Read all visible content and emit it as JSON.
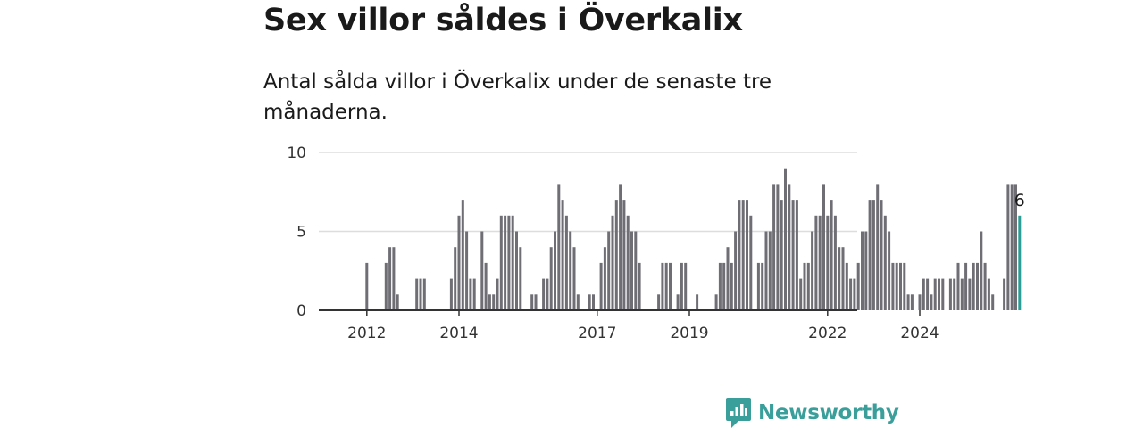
{
  "title": "Sex villor såldes i Överkalix",
  "subtitle": "Antal sålda villor i Överkalix under de senaste tre månaderna.",
  "brand": {
    "name": "Newsworthy",
    "color": "#3a9e9a"
  },
  "colors": {
    "bar": "#6e6e74",
    "highlight": "#2a9d96",
    "grid": "#dddddd",
    "axis": "#333333"
  },
  "chart_data": {
    "type": "bar",
    "title": "",
    "xlabel": "",
    "ylabel": "",
    "ylim": [
      0,
      10
    ],
    "yticks": [
      0,
      5,
      10
    ],
    "grid": true,
    "start_month": "2012-01",
    "values": [
      0,
      0,
      0,
      0,
      0,
      0,
      3,
      0,
      0,
      0,
      0,
      3,
      4,
      4,
      1,
      0,
      0,
      0,
      0,
      2,
      2,
      2,
      0,
      0,
      0,
      0,
      0,
      0,
      2,
      4,
      6,
      7,
      5,
      2,
      2,
      0,
      5,
      3,
      1,
      1,
      2,
      6,
      6,
      6,
      6,
      5,
      4,
      0,
      0,
      1,
      1,
      0,
      2,
      2,
      4,
      5,
      8,
      7,
      6,
      5,
      4,
      1,
      0,
      0,
      1,
      1,
      0,
      3,
      4,
      5,
      6,
      7,
      8,
      7,
      6,
      5,
      5,
      3,
      0,
      0,
      0,
      0,
      1,
      3,
      3,
      3,
      0,
      1,
      3,
      3,
      0,
      0,
      1,
      0,
      0,
      0,
      0,
      1,
      3,
      3,
      4,
      3,
      5,
      7,
      7,
      7,
      6,
      0,
      3,
      3,
      5,
      5,
      8,
      8,
      7,
      9,
      8,
      7,
      7,
      2,
      3,
      3,
      5,
      6,
      6,
      8,
      6,
      7,
      6,
      4,
      4,
      3,
      2,
      2,
      3,
      5,
      5,
      7,
      7,
      8,
      7,
      6,
      5,
      3,
      3,
      3,
      3,
      1,
      1,
      0,
      1,
      2,
      2,
      1,
      2,
      2,
      2,
      0,
      2,
      2,
      3,
      2,
      3,
      2,
      3,
      3,
      5,
      3,
      2,
      1,
      0,
      0,
      2,
      8,
      8,
      8,
      6
    ],
    "last_value": 6,
    "x_ticks": [
      {
        "label": "2012",
        "index": 6
      },
      {
        "label": "2014",
        "index": 30
      },
      {
        "label": "2017",
        "index": 66
      },
      {
        "label": "2019",
        "index": 90
      },
      {
        "label": "2022",
        "index": 126
      },
      {
        "label": "2024",
        "index": 150
      }
    ]
  }
}
